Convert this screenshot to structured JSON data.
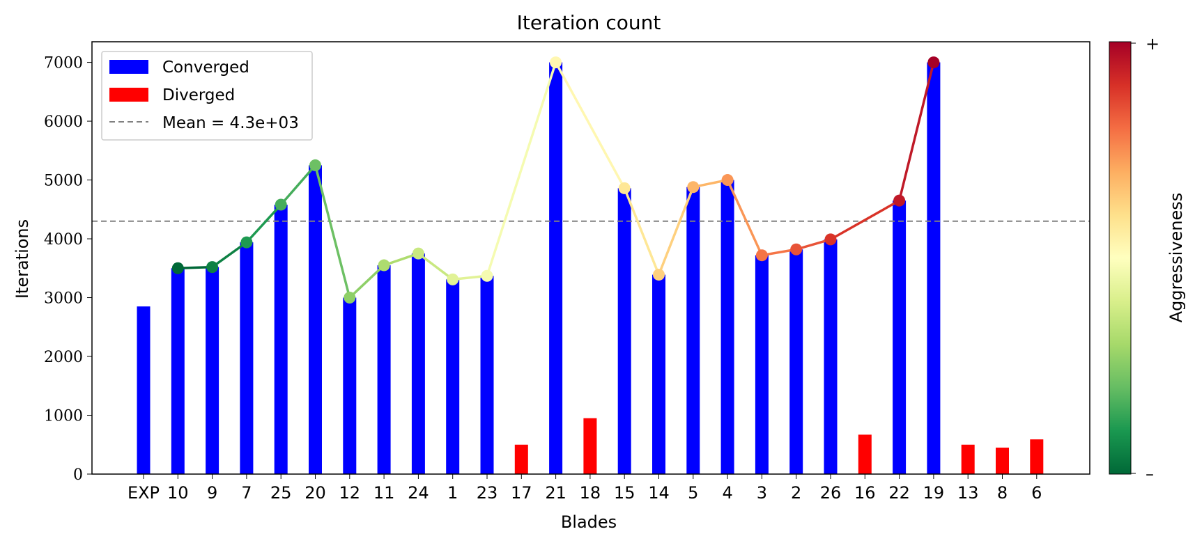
{
  "chart_data": {
    "type": "bar",
    "title": "Iteration count",
    "xlabel": "Blades",
    "ylabel": "Iterations",
    "ylim": [
      0,
      7350
    ],
    "yticks": [
      0,
      1000,
      2000,
      3000,
      4000,
      5000,
      6000,
      7000
    ],
    "grid": false,
    "legend_position": "top-left",
    "categories": [
      "EXP",
      "10",
      "9",
      "7",
      "25",
      "20",
      "12",
      "11",
      "24",
      "1",
      "23",
      "17",
      "21",
      "18",
      "15",
      "14",
      "5",
      "4",
      "3",
      "2",
      "26",
      "16",
      "22",
      "19",
      "13",
      "8",
      "6"
    ],
    "series": [
      {
        "name": "Converged",
        "color": "#0000ff",
        "values": [
          2850,
          3500,
          3520,
          3940,
          4580,
          5250,
          3000,
          3550,
          3750,
          3310,
          3370,
          null,
          7000,
          null,
          4860,
          3390,
          4880,
          5000,
          3720,
          3820,
          3990,
          null,
          4650,
          7000,
          null,
          null,
          null
        ]
      },
      {
        "name": "Diverged",
        "color": "#ff0000",
        "values": [
          null,
          null,
          null,
          null,
          null,
          null,
          null,
          null,
          null,
          null,
          null,
          500,
          null,
          950,
          null,
          null,
          null,
          null,
          null,
          null,
          null,
          670,
          null,
          null,
          500,
          450,
          590
        ]
      }
    ],
    "aggressiveness_line": {
      "categories": [
        "10",
        "9",
        "7",
        "25",
        "20",
        "12",
        "11",
        "24",
        "1",
        "23",
        "21",
        "15",
        "14",
        "5",
        "4",
        "3",
        "2",
        "26",
        "22",
        "19"
      ],
      "values": [
        3500,
        3520,
        3940,
        4580,
        5250,
        3000,
        3550,
        3750,
        3310,
        3370,
        7000,
        4860,
        3390,
        4880,
        5000,
        3720,
        3820,
        3990,
        4650,
        7000
      ],
      "colormap": "RdYlGn_r"
    },
    "mean_line": {
      "value": 4300,
      "label": "Mean = 4.3e+03",
      "color": "#808080",
      "style": "dashed"
    },
    "colorbar": {
      "label": "Aggressiveness",
      "top_label": "+",
      "bottom_label": "–"
    }
  }
}
